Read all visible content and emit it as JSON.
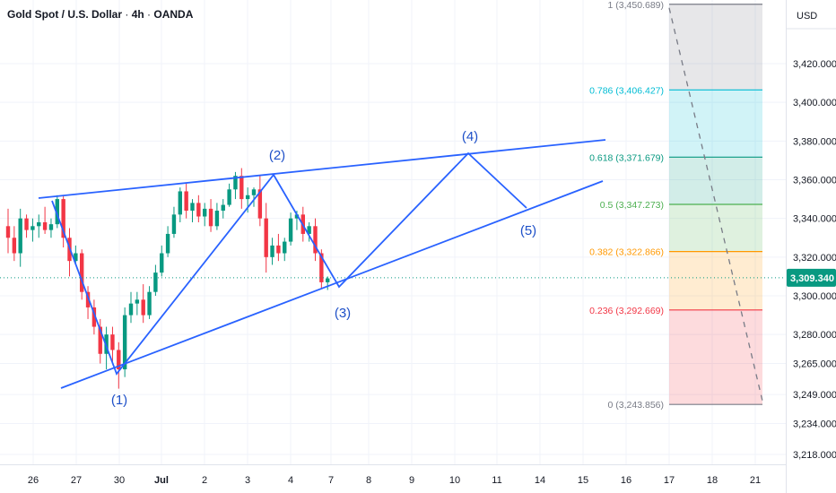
{
  "header": {
    "symbol": "Gold Spot / U.S. Dollar",
    "interval": "4h",
    "exchange": "OANDA",
    "currency": "USD"
  },
  "chart_data": {
    "type": "candlestick",
    "y_scale": {
      "min": 3210,
      "max": 3455
    },
    "y_ticks": [
      3218,
      3234,
      3249,
      3265,
      3280,
      3300,
      3320,
      3340,
      3360,
      3380,
      3400,
      3420
    ],
    "y_tick_labels": [
      "3,218.000",
      "3,234.000",
      "3,249.000",
      "3,265.000",
      "3,280.000",
      "3,300.000",
      "3,320.000",
      "3,340.000",
      "3,360.000",
      "3,380.000",
      "3,400.000",
      "3,420.000"
    ],
    "x_ticks": [
      "26",
      "27",
      "30",
      "Jul",
      "2",
      "3",
      "4",
      "7",
      "8",
      "9",
      "10",
      "11",
      "14",
      "15",
      "16",
      "17",
      "18",
      "21"
    ],
    "last_price": {
      "value": 3309.34,
      "label": "3,309.340"
    },
    "candles": [
      {
        "o": 3336,
        "h": 3345,
        "l": 3322,
        "c": 3330
      },
      {
        "o": 3330,
        "h": 3336,
        "l": 3318,
        "c": 3322
      },
      {
        "o": 3322,
        "h": 3345,
        "l": 3315,
        "c": 3340
      },
      {
        "o": 3340,
        "h": 3342,
        "l": 3330,
        "c": 3334
      },
      {
        "o": 3334,
        "h": 3340,
        "l": 3328,
        "c": 3336
      },
      {
        "o": 3336,
        "h": 3342,
        "l": 3330,
        "c": 3338
      },
      {
        "o": 3338,
        "h": 3346,
        "l": 3332,
        "c": 3334
      },
      {
        "o": 3334,
        "h": 3340,
        "l": 3330,
        "c": 3337
      },
      {
        "o": 3337,
        "h": 3352,
        "l": 3335,
        "c": 3350
      },
      {
        "o": 3350,
        "h": 3352,
        "l": 3325,
        "c": 3330
      },
      {
        "o": 3330,
        "h": 3335,
        "l": 3310,
        "c": 3318
      },
      {
        "o": 3318,
        "h": 3326,
        "l": 3316,
        "c": 3322
      },
      {
        "o": 3322,
        "h": 3324,
        "l": 3298,
        "c": 3302
      },
      {
        "o": 3302,
        "h": 3305,
        "l": 3288,
        "c": 3294
      },
      {
        "o": 3294,
        "h": 3298,
        "l": 3280,
        "c": 3284
      },
      {
        "o": 3284,
        "h": 3288,
        "l": 3265,
        "c": 3270
      },
      {
        "o": 3270,
        "h": 3284,
        "l": 3262,
        "c": 3280
      },
      {
        "o": 3280,
        "h": 3284,
        "l": 3266,
        "c": 3272
      },
      {
        "o": 3272,
        "h": 3276,
        "l": 3252,
        "c": 3262
      },
      {
        "o": 3262,
        "h": 3294,
        "l": 3258,
        "c": 3290
      },
      {
        "o": 3290,
        "h": 3302,
        "l": 3286,
        "c": 3296
      },
      {
        "o": 3296,
        "h": 3302,
        "l": 3290,
        "c": 3298
      },
      {
        "o": 3298,
        "h": 3306,
        "l": 3286,
        "c": 3290
      },
      {
        "o": 3290,
        "h": 3305,
        "l": 3288,
        "c": 3302
      },
      {
        "o": 3302,
        "h": 3316,
        "l": 3300,
        "c": 3312
      },
      {
        "o": 3312,
        "h": 3326,
        "l": 3310,
        "c": 3322
      },
      {
        "o": 3322,
        "h": 3336,
        "l": 3320,
        "c": 3332
      },
      {
        "o": 3332,
        "h": 3346,
        "l": 3330,
        "c": 3342
      },
      {
        "o": 3342,
        "h": 3356,
        "l": 3338,
        "c": 3354
      },
      {
        "o": 3354,
        "h": 3358,
        "l": 3340,
        "c": 3344
      },
      {
        "o": 3344,
        "h": 3350,
        "l": 3338,
        "c": 3348
      },
      {
        "o": 3348,
        "h": 3352,
        "l": 3338,
        "c": 3341
      },
      {
        "o": 3341,
        "h": 3348,
        "l": 3336,
        "c": 3345
      },
      {
        "o": 3345,
        "h": 3350,
        "l": 3333,
        "c": 3336
      },
      {
        "o": 3336,
        "h": 3348,
        "l": 3334,
        "c": 3344
      },
      {
        "o": 3344,
        "h": 3350,
        "l": 3340,
        "c": 3347
      },
      {
        "o": 3347,
        "h": 3358,
        "l": 3346,
        "c": 3355
      },
      {
        "o": 3355,
        "h": 3364,
        "l": 3350,
        "c": 3362
      },
      {
        "o": 3362,
        "h": 3366,
        "l": 3345,
        "c": 3350
      },
      {
        "o": 3350,
        "h": 3356,
        "l": 3343,
        "c": 3352
      },
      {
        "o": 3352,
        "h": 3356,
        "l": 3346,
        "c": 3355
      },
      {
        "o": 3355,
        "h": 3362,
        "l": 3336,
        "c": 3340
      },
      {
        "o": 3340,
        "h": 3348,
        "l": 3312,
        "c": 3320
      },
      {
        "o": 3320,
        "h": 3330,
        "l": 3316,
        "c": 3326
      },
      {
        "o": 3326,
        "h": 3332,
        "l": 3318,
        "c": 3322
      },
      {
        "o": 3322,
        "h": 3330,
        "l": 3318,
        "c": 3328
      },
      {
        "o": 3328,
        "h": 3343,
        "l": 3326,
        "c": 3340
      },
      {
        "o": 3340,
        "h": 3344,
        "l": 3334,
        "c": 3342
      },
      {
        "o": 3342,
        "h": 3346,
        "l": 3328,
        "c": 3332
      },
      {
        "o": 3332,
        "h": 3338,
        "l": 3328,
        "c": 3336
      },
      {
        "o": 3336,
        "h": 3340,
        "l": 3318,
        "c": 3322
      },
      {
        "o": 3322,
        "h": 3324,
        "l": 3304,
        "c": 3307
      },
      {
        "o": 3307,
        "h": 3310,
        "l": 3303,
        "c": 3309
      }
    ],
    "fib_levels": [
      {
        "ratio": 1,
        "price": 3450.689,
        "label": "1 (3,450.689)",
        "color": "#787b86"
      },
      {
        "ratio": 0.786,
        "price": 3406.427,
        "label": "0.786 (3,406.427)",
        "color": "#00bcd4"
      },
      {
        "ratio": 0.618,
        "price": 3371.679,
        "label": "0.618 (3,371.679)",
        "color": "#089981"
      },
      {
        "ratio": 0.5,
        "price": 3347.273,
        "label": "0.5 (3,347.273)",
        "color": "#4caf50"
      },
      {
        "ratio": 0.382,
        "price": 3322.866,
        "label": "0.382 (3,322.866)",
        "color": "#ff9800"
      },
      {
        "ratio": 0.236,
        "price": 3292.669,
        "label": "0.236 (3,292.669)",
        "color": "#f23645"
      },
      {
        "ratio": 0,
        "price": 3243.856,
        "label": "0 (3,243.856)",
        "color": "#787b86"
      }
    ],
    "wave_labels": [
      "(1)",
      "(2)",
      "(3)",
      "(4)",
      "(5)"
    ],
    "colors": {
      "up": "#089981",
      "down": "#f23645",
      "drawing": "#2962ff",
      "wave_text": "#1e50c8",
      "price_tag": "#089981"
    }
  }
}
